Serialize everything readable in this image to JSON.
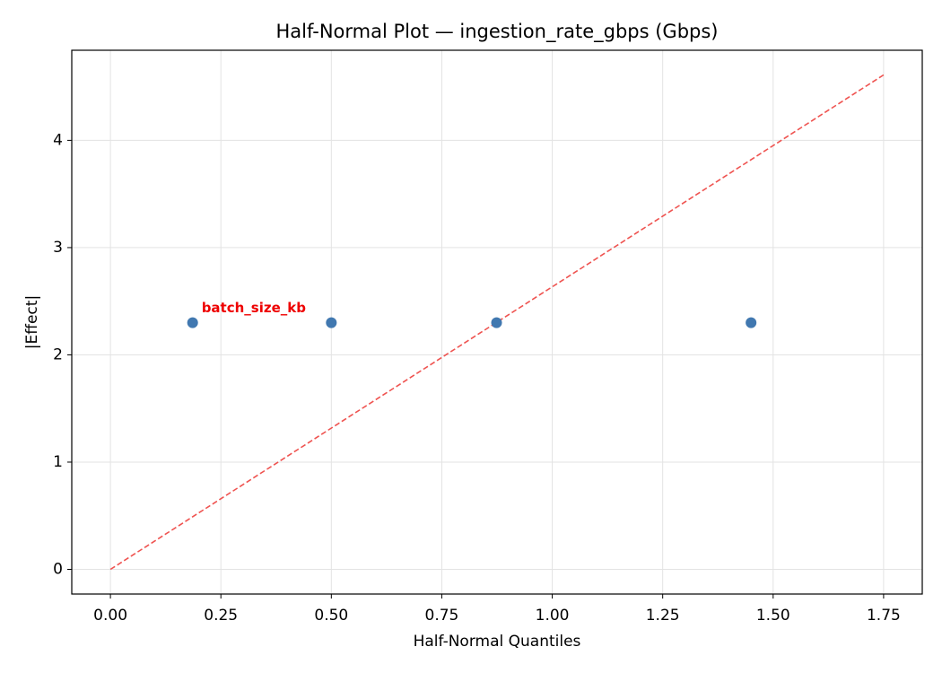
{
  "chart_data": {
    "type": "scatter",
    "title": "Half-Normal Plot — ingestion_rate_gbps (Gbps)",
    "x_label": "Half-Normal Quantiles",
    "y_label": "|Effect|",
    "x": [
      0.186,
      0.5,
      0.874,
      1.45
    ],
    "values": [
      2.3,
      2.3,
      2.3,
      2.3
    ],
    "color": "#4178b0",
    "reference_line": {
      "x": [
        0,
        1.75
      ],
      "values": [
        0,
        4.61
      ],
      "color": "#ef5350"
    },
    "annotations": [
      {
        "text": "batch_size_kb",
        "x": 0.186,
        "y": 2.3,
        "color": "#ee0000"
      }
    ],
    "xlim": [
      -0.0875,
      1.8375
    ],
    "ylim": [
      -0.23,
      4.84
    ],
    "xticks": [
      {
        "value": 0,
        "label": "0.00"
      },
      {
        "value": 0.25,
        "label": "0.25"
      },
      {
        "value": 0.5,
        "label": "0.50"
      },
      {
        "value": 0.75,
        "label": "0.75"
      },
      {
        "value": 1,
        "label": "1.00"
      },
      {
        "value": 1.25,
        "label": "1.25"
      },
      {
        "value": 1.5,
        "label": "1.50"
      },
      {
        "value": 1.75,
        "label": "1.75"
      }
    ],
    "yticks": [
      0,
      1,
      2,
      3,
      4
    ],
    "grid": true
  }
}
